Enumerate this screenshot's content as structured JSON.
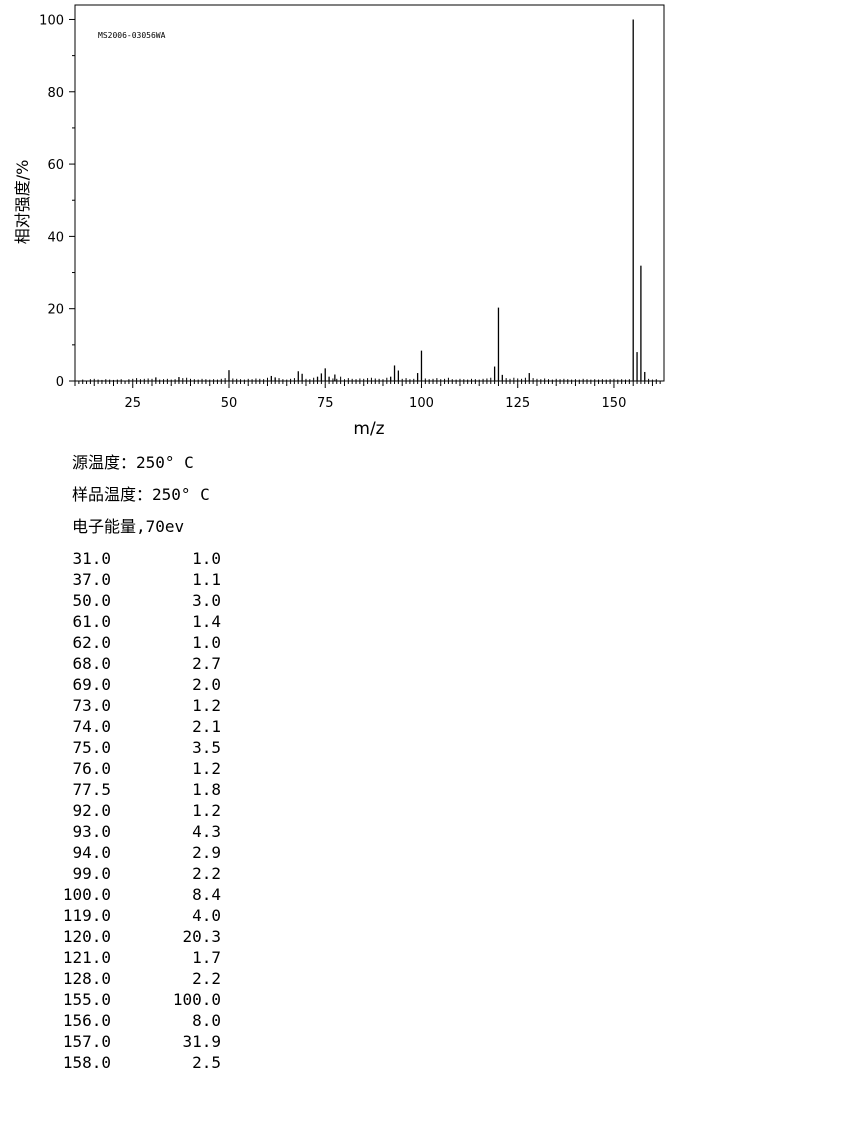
{
  "chart_data": {
    "type": "bar",
    "subtype": "mass-spectrum",
    "title": "MS2006-03056WA",
    "xlabel": "m/z",
    "ylabel": "相对强度/%",
    "xlim": [
      10,
      163
    ],
    "ylim": [
      0,
      104
    ],
    "xticks": [
      25,
      50,
      75,
      100,
      125,
      150
    ],
    "yticks": [
      0,
      20,
      40,
      60,
      80,
      100
    ],
    "grid": false,
    "labeled_peaks": {
      "x": [
        31.0,
        37.0,
        50.0,
        61.0,
        62.0,
        68.0,
        69.0,
        73.0,
        74.0,
        75.0,
        76.0,
        77.5,
        92.0,
        93.0,
        94.0,
        99.0,
        100.0,
        119.0,
        120.0,
        121.0,
        128.0,
        155.0,
        156.0,
        157.0,
        158.0
      ],
      "y": [
        1.0,
        1.1,
        3.0,
        1.4,
        1.0,
        2.7,
        2.0,
        1.2,
        2.1,
        3.5,
        1.2,
        1.8,
        1.2,
        4.3,
        2.9,
        2.2,
        8.4,
        4.0,
        20.3,
        1.7,
        2.2,
        100.0,
        8.0,
        31.9,
        2.5
      ]
    },
    "minor_peaks": {
      "x": [
        12,
        14,
        15,
        16,
        17,
        18,
        19,
        20,
        21,
        22,
        24,
        25,
        26,
        27,
        28,
        29,
        30,
        32,
        33,
        34,
        35,
        36,
        38,
        39,
        40,
        41,
        42,
        43,
        44,
        45,
        46,
        47,
        48,
        49,
        51,
        52,
        53,
        54,
        55,
        56,
        57,
        58,
        59,
        60,
        63,
        64,
        65,
        66,
        67,
        70,
        71,
        72,
        77,
        78,
        79,
        80,
        81,
        82,
        83,
        84,
        85,
        86,
        87,
        88,
        89,
        90,
        91,
        95,
        96,
        97,
        98,
        101,
        102,
        103,
        104,
        105,
        106,
        107,
        108,
        109,
        110,
        111,
        112,
        113,
        114,
        115,
        116,
        117,
        118,
        122,
        123,
        124,
        125,
        126,
        127,
        129,
        130,
        131,
        132,
        133,
        134,
        135,
        136,
        137,
        138,
        139,
        140,
        141,
        142,
        143,
        144,
        145,
        146,
        147,
        148,
        149,
        150,
        151,
        152,
        153,
        154,
        159,
        160,
        161
      ],
      "y": [
        0.4,
        0.5,
        0.6,
        0.4,
        0.3,
        0.5,
        0.4,
        0.3,
        0.4,
        0.5,
        0.5,
        0.6,
        0.8,
        0.5,
        0.6,
        0.7,
        0.6,
        0.4,
        0.5,
        0.6,
        0.4,
        0.5,
        0.8,
        0.9,
        0.6,
        0.5,
        0.4,
        0.6,
        0.5,
        0.4,
        0.5,
        0.4,
        0.6,
        0.8,
        0.7,
        0.6,
        0.5,
        0.4,
        0.6,
        0.5,
        0.7,
        0.6,
        0.5,
        0.9,
        0.8,
        0.5,
        0.4,
        0.6,
        0.8,
        0.6,
        0.5,
        0.9,
        0.7,
        0.6,
        1.2,
        0.5,
        0.8,
        0.6,
        0.5,
        0.7,
        0.6,
        0.8,
        0.9,
        0.7,
        0.6,
        0.5,
        0.9,
        0.6,
        0.8,
        0.5,
        0.6,
        0.7,
        0.5,
        0.6,
        0.8,
        0.5,
        0.6,
        0.9,
        0.5,
        0.4,
        0.6,
        0.5,
        0.4,
        0.6,
        0.5,
        0.4,
        0.6,
        0.7,
        0.9,
        0.8,
        0.6,
        0.9,
        0.7,
        0.6,
        0.9,
        0.8,
        0.6,
        0.5,
        0.7,
        0.5,
        0.4,
        0.6,
        0.5,
        0.6,
        0.5,
        0.4,
        0.5,
        0.4,
        0.6,
        0.5,
        0.4,
        0.5,
        0.4,
        0.5,
        0.4,
        0.5,
        0.6,
        0.4,
        0.5,
        0.4,
        0.5,
        0.6,
        0.4,
        0.5
      ]
    }
  },
  "conditions": {
    "source_temp": "源温度：250° C",
    "sample_temp": "样品温度：250° C",
    "electron_energy": "电子能量,70ev"
  },
  "peak_table": [
    {
      "mz": "31.0",
      "intensity": "1.0"
    },
    {
      "mz": "37.0",
      "intensity": "1.1"
    },
    {
      "mz": "50.0",
      "intensity": "3.0"
    },
    {
      "mz": "61.0",
      "intensity": "1.4"
    },
    {
      "mz": "62.0",
      "intensity": "1.0"
    },
    {
      "mz": "68.0",
      "intensity": "2.7"
    },
    {
      "mz": "69.0",
      "intensity": "2.0"
    },
    {
      "mz": "73.0",
      "intensity": "1.2"
    },
    {
      "mz": "74.0",
      "intensity": "2.1"
    },
    {
      "mz": "75.0",
      "intensity": "3.5"
    },
    {
      "mz": "76.0",
      "intensity": "1.2"
    },
    {
      "mz": "77.5",
      "intensity": "1.8"
    },
    {
      "mz": "92.0",
      "intensity": "1.2"
    },
    {
      "mz": "93.0",
      "intensity": "4.3"
    },
    {
      "mz": "94.0",
      "intensity": "2.9"
    },
    {
      "mz": "99.0",
      "intensity": "2.2"
    },
    {
      "mz": "100.0",
      "intensity": "8.4"
    },
    {
      "mz": "119.0",
      "intensity": "4.0"
    },
    {
      "mz": "120.0",
      "intensity": "20.3"
    },
    {
      "mz": "121.0",
      "intensity": "1.7"
    },
    {
      "mz": "128.0",
      "intensity": "2.2"
    },
    {
      "mz": "155.0",
      "intensity": "100.0"
    },
    {
      "mz": "156.0",
      "intensity": "8.0"
    },
    {
      "mz": "157.0",
      "intensity": "31.9"
    },
    {
      "mz": "158.0",
      "intensity": "2.5"
    }
  ]
}
